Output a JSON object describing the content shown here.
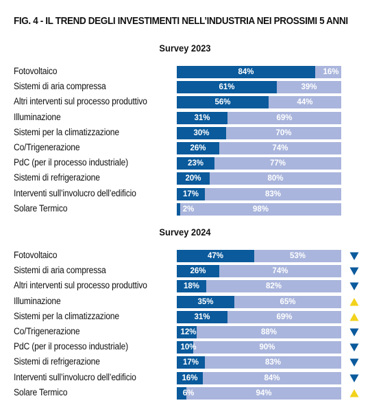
{
  "figure_title": "FIG. 4 - IL TREND DEGLI INVESTIMENTI NELL’INDUSTRIA NEI PROSSIMI 5 ANNI",
  "colors": {
    "yes_bar": "#0a5a9c",
    "no_bar": "#a9b5dc",
    "trend_down": "#0a5a9c",
    "trend_up": "#f2d21b"
  },
  "chart_data": [
    {
      "type": "bar",
      "orientation": "horizontal",
      "stacked": true,
      "title": "Survey 2023",
      "categories": [
        "Fotovoltaico",
        "Sistemi di aria compressa",
        "Altri interventi sul processo produttivo",
        "Illuminazione",
        "Sistemi per la climatizzazione",
        "Co/Trigenerazione",
        "PdC (per il processo industriale)",
        "Sistemi di refrigerazione",
        "Interventi sull’involucro dell’edificio",
        "Solare Termico"
      ],
      "series": [
        {
          "values": [
            84,
            61,
            56,
            31,
            30,
            26,
            23,
            20,
            17,
            2
          ],
          "labels": [
            "84%",
            "61%",
            "56%",
            "31%",
            "30%",
            "26%",
            "23%",
            "20%",
            "17%",
            "2%"
          ]
        },
        {
          "values": [
            16,
            39,
            44,
            69,
            70,
            74,
            77,
            80,
            83,
            98
          ],
          "labels": [
            "16%",
            "39%",
            "44%",
            "69%",
            "70%",
            "74%",
            "77%",
            "80%",
            "83%",
            "98%"
          ]
        }
      ],
      "xlim": [
        0,
        100
      ]
    },
    {
      "type": "bar",
      "orientation": "horizontal",
      "stacked": true,
      "title": "Survey 2024",
      "categories": [
        "Fotovoltaico",
        "Sistemi di aria compressa",
        "Altri interventi sul processo produttivo",
        "Illuminazione",
        "Sistemi per la climatizzazione",
        "Co/Trigenerazione",
        "PdC (per il processo industriale)",
        "Sistemi di refrigerazione",
        "Interventi sull’involucro dell’edificio",
        "Solare Termico"
      ],
      "series": [
        {
          "values": [
            47,
            26,
            18,
            35,
            31,
            12,
            10,
            17,
            16,
            6
          ],
          "labels": [
            "47%",
            "26%",
            "18%",
            "35%",
            "31%",
            "12%",
            "10%",
            "17%",
            "16%",
            "6%"
          ]
        },
        {
          "values": [
            53,
            74,
            82,
            65,
            69,
            88,
            90,
            83,
            84,
            94
          ],
          "labels": [
            "53%",
            "74%",
            "82%",
            "65%",
            "69%",
            "88%",
            "90%",
            "83%",
            "84%",
            "94%"
          ]
        }
      ],
      "trend_icons": [
        "down",
        "down",
        "down",
        "up",
        "up",
        "down",
        "down",
        "down",
        "down",
        "up"
      ],
      "xlim": [
        0,
        100
      ]
    }
  ]
}
